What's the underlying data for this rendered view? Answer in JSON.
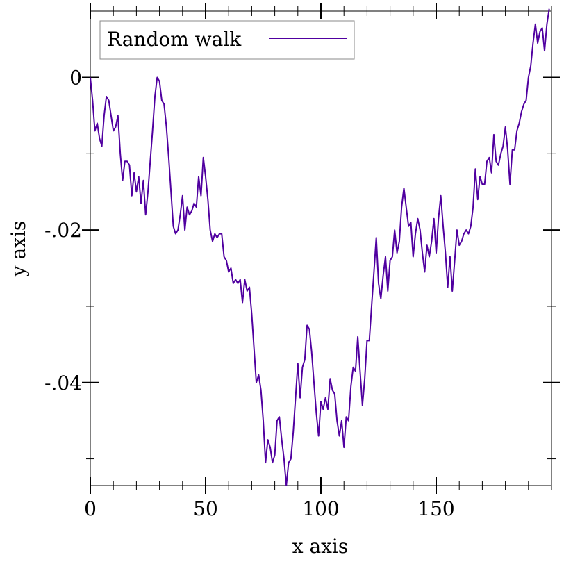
{
  "chart_data": {
    "type": "line",
    "xlabel": "x axis",
    "ylabel": "y axis",
    "xlim": [
      0,
      200
    ],
    "ylim": [
      -0.0535,
      0.0087
    ],
    "x_ticks": [
      0,
      50,
      100,
      150
    ],
    "x_tick_labels": [
      "0",
      "50",
      "100",
      "150"
    ],
    "y_ticks": [
      0,
      -0.02,
      -0.04
    ],
    "y_tick_labels": [
      "0",
      "-.02",
      "-.04"
    ],
    "x_minor_step": 10,
    "y_minor_step": 0.01,
    "grid": false,
    "legend": {
      "position": "top-left",
      "entries": [
        "Random walk"
      ]
    },
    "series": [
      {
        "name": "Random walk",
        "color": "#5000a0",
        "x": [
          0,
          1,
          2,
          3,
          4,
          5,
          6,
          7,
          8,
          9,
          10,
          11,
          12,
          13,
          14,
          15,
          16,
          17,
          18,
          19,
          20,
          21,
          22,
          23,
          24,
          25,
          26,
          27,
          28,
          29,
          30,
          31,
          32,
          33,
          34,
          35,
          36,
          37,
          38,
          39,
          40,
          41,
          42,
          43,
          44,
          45,
          46,
          47,
          48,
          49,
          50,
          51,
          52,
          53,
          54,
          55,
          56,
          57,
          58,
          59,
          60,
          61,
          62,
          63,
          64,
          65,
          66,
          67,
          68,
          69,
          70,
          71,
          72,
          73,
          74,
          75,
          76,
          77,
          78,
          79,
          80,
          81,
          82,
          83,
          84,
          85,
          86,
          87,
          88,
          89,
          90,
          91,
          92,
          93,
          94,
          95,
          96,
          97,
          98,
          99,
          100,
          101,
          102,
          103,
          104,
          105,
          106,
          107,
          108,
          109,
          110,
          111,
          112,
          113,
          114,
          115,
          116,
          117,
          118,
          119,
          120,
          121,
          122,
          123,
          124,
          125,
          126,
          127,
          128,
          129,
          130,
          131,
          132,
          133,
          134,
          135,
          136,
          137,
          138,
          139,
          140,
          141,
          142,
          143,
          144,
          145,
          146,
          147,
          148,
          149,
          150,
          151,
          152,
          153,
          154,
          155,
          156,
          157,
          158,
          159,
          160,
          161,
          162,
          163,
          164,
          165,
          166,
          167,
          168,
          169,
          170,
          171,
          172,
          173,
          174,
          175,
          176,
          177,
          178,
          179,
          180,
          181,
          182,
          183,
          184,
          185,
          186,
          187,
          188,
          189,
          190,
          191,
          192,
          193,
          194,
          195,
          196,
          197,
          198,
          199
        ],
        "y": [
          0.0,
          -0.003,
          -0.007,
          -0.006,
          -0.008,
          -0.009,
          -0.005,
          -0.0025,
          -0.003,
          -0.005,
          -0.007,
          -0.0065,
          -0.005,
          -0.01,
          -0.0135,
          -0.011,
          -0.011,
          -0.0115,
          -0.0155,
          -0.0125,
          -0.015,
          -0.013,
          -0.0165,
          -0.0135,
          -0.018,
          -0.015,
          -0.011,
          -0.007,
          -0.0025,
          0.0,
          -0.0005,
          -0.003,
          -0.0035,
          -0.0065,
          -0.0105,
          -0.015,
          -0.0195,
          -0.0205,
          -0.02,
          -0.018,
          -0.0155,
          -0.02,
          -0.017,
          -0.018,
          -0.0175,
          -0.0165,
          -0.017,
          -0.013,
          -0.0155,
          -0.0105,
          -0.013,
          -0.016,
          -0.02,
          -0.0215,
          -0.0205,
          -0.021,
          -0.0205,
          -0.0205,
          -0.0235,
          -0.024,
          -0.0255,
          -0.025,
          -0.027,
          -0.0265,
          -0.027,
          -0.0265,
          -0.0295,
          -0.0265,
          -0.028,
          -0.0275,
          -0.031,
          -0.0355,
          -0.04,
          -0.039,
          -0.041,
          -0.045,
          -0.0505,
          -0.0475,
          -0.0485,
          -0.0505,
          -0.0495,
          -0.045,
          -0.0445,
          -0.0475,
          -0.05,
          -0.0535,
          -0.0505,
          -0.05,
          -0.0465,
          -0.042,
          -0.0375,
          -0.042,
          -0.038,
          -0.037,
          -0.0325,
          -0.033,
          -0.036,
          -0.04,
          -0.044,
          -0.047,
          -0.0425,
          -0.0435,
          -0.042,
          -0.0435,
          -0.0395,
          -0.041,
          -0.0415,
          -0.045,
          -0.047,
          -0.045,
          -0.0485,
          -0.0445,
          -0.045,
          -0.0405,
          -0.038,
          -0.0385,
          -0.034,
          -0.0385,
          -0.043,
          -0.0395,
          -0.0345,
          -0.0345,
          -0.03,
          -0.0255,
          -0.021,
          -0.027,
          -0.029,
          -0.026,
          -0.0235,
          -0.028,
          -0.024,
          -0.0235,
          -0.02,
          -0.023,
          -0.0215,
          -0.017,
          -0.0145,
          -0.017,
          -0.0195,
          -0.019,
          -0.0235,
          -0.0205,
          -0.0185,
          -0.02,
          -0.023,
          -0.0255,
          -0.022,
          -0.0235,
          -0.0215,
          -0.0185,
          -0.023,
          -0.0185,
          -0.0155,
          -0.0195,
          -0.023,
          -0.0275,
          -0.0235,
          -0.028,
          -0.024,
          -0.02,
          -0.022,
          -0.0215,
          -0.0205,
          -0.02,
          -0.0205,
          -0.0195,
          -0.017,
          -0.012,
          -0.016,
          -0.013,
          -0.014,
          -0.014,
          -0.011,
          -0.0105,
          -0.0125,
          -0.0075,
          -0.011,
          -0.0115,
          -0.01,
          -0.009,
          -0.0065,
          -0.0095,
          -0.014,
          -0.0095,
          -0.0095,
          -0.007,
          -0.006,
          -0.0045,
          -0.0035,
          -0.003,
          0.0,
          0.0015,
          0.0045,
          0.007,
          0.0045,
          0.006,
          0.0065,
          0.0035,
          0.007,
          0.009
        ]
      }
    ]
  }
}
